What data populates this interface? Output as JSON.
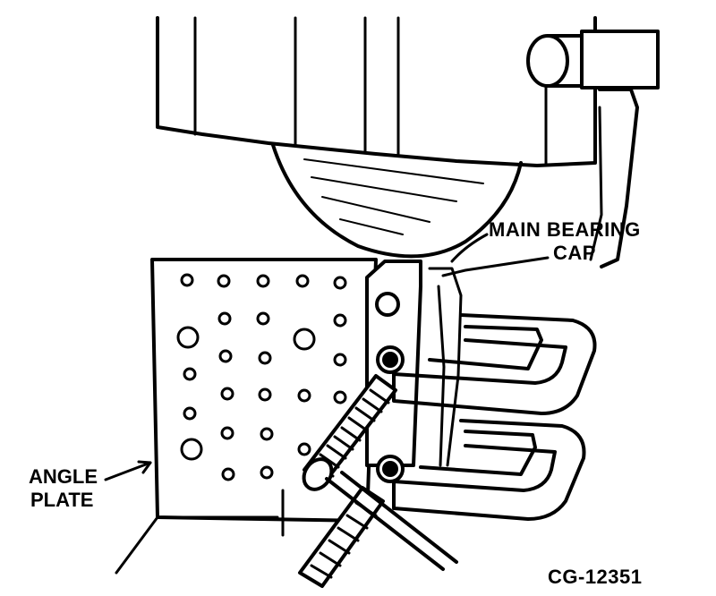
{
  "labels": {
    "main_bearing_line1": "MAIN BEARING",
    "main_bearing_line2": "CAP",
    "angle_plate_line1": "ANGLE",
    "angle_plate_line2": "PLATE",
    "figure_id": "CG-12351"
  },
  "colors": {
    "ink": "#000000",
    "paper": "#ffffff"
  }
}
